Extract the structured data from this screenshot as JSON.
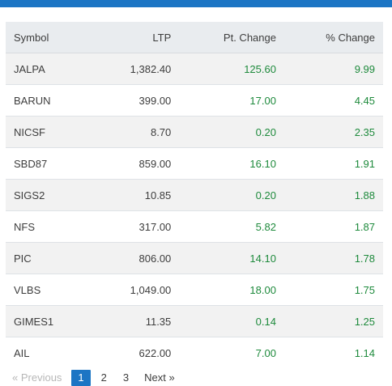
{
  "table": {
    "headers": {
      "symbol": "Symbol",
      "ltp": "LTP",
      "pt_change": "Pt. Change",
      "pct_change": "% Change"
    },
    "rows": [
      {
        "symbol": "JALPA",
        "ltp": "1,382.40",
        "pt_change": "125.60",
        "pct_change": "9.99"
      },
      {
        "symbol": "BARUN",
        "ltp": "399.00",
        "pt_change": "17.00",
        "pct_change": "4.45"
      },
      {
        "symbol": "NICSF",
        "ltp": "8.70",
        "pt_change": "0.20",
        "pct_change": "2.35"
      },
      {
        "symbol": "SBD87",
        "ltp": "859.00",
        "pt_change": "16.10",
        "pct_change": "1.91"
      },
      {
        "symbol": "SIGS2",
        "ltp": "10.85",
        "pt_change": "0.20",
        "pct_change": "1.88"
      },
      {
        "symbol": "NFS",
        "ltp": "317.00",
        "pt_change": "5.82",
        "pct_change": "1.87"
      },
      {
        "symbol": "PIC",
        "ltp": "806.00",
        "pt_change": "14.10",
        "pct_change": "1.78"
      },
      {
        "symbol": "VLBS",
        "ltp": "1,049.00",
        "pt_change": "18.00",
        "pct_change": "1.75"
      },
      {
        "symbol": "GIMES1",
        "ltp": "11.35",
        "pt_change": "0.14",
        "pct_change": "1.25"
      },
      {
        "symbol": "AIL",
        "ltp": "622.00",
        "pt_change": "7.00",
        "pct_change": "1.14"
      }
    ]
  },
  "pagination": {
    "prev": "« Previous",
    "pages": [
      "1",
      "2",
      "3"
    ],
    "active": "1",
    "next": "Next »"
  },
  "colors": {
    "top_bar": "#1c75c4",
    "positive": "#1e8a3c",
    "header_bg": "#e9ecef",
    "active_page": "#1c75c4"
  }
}
